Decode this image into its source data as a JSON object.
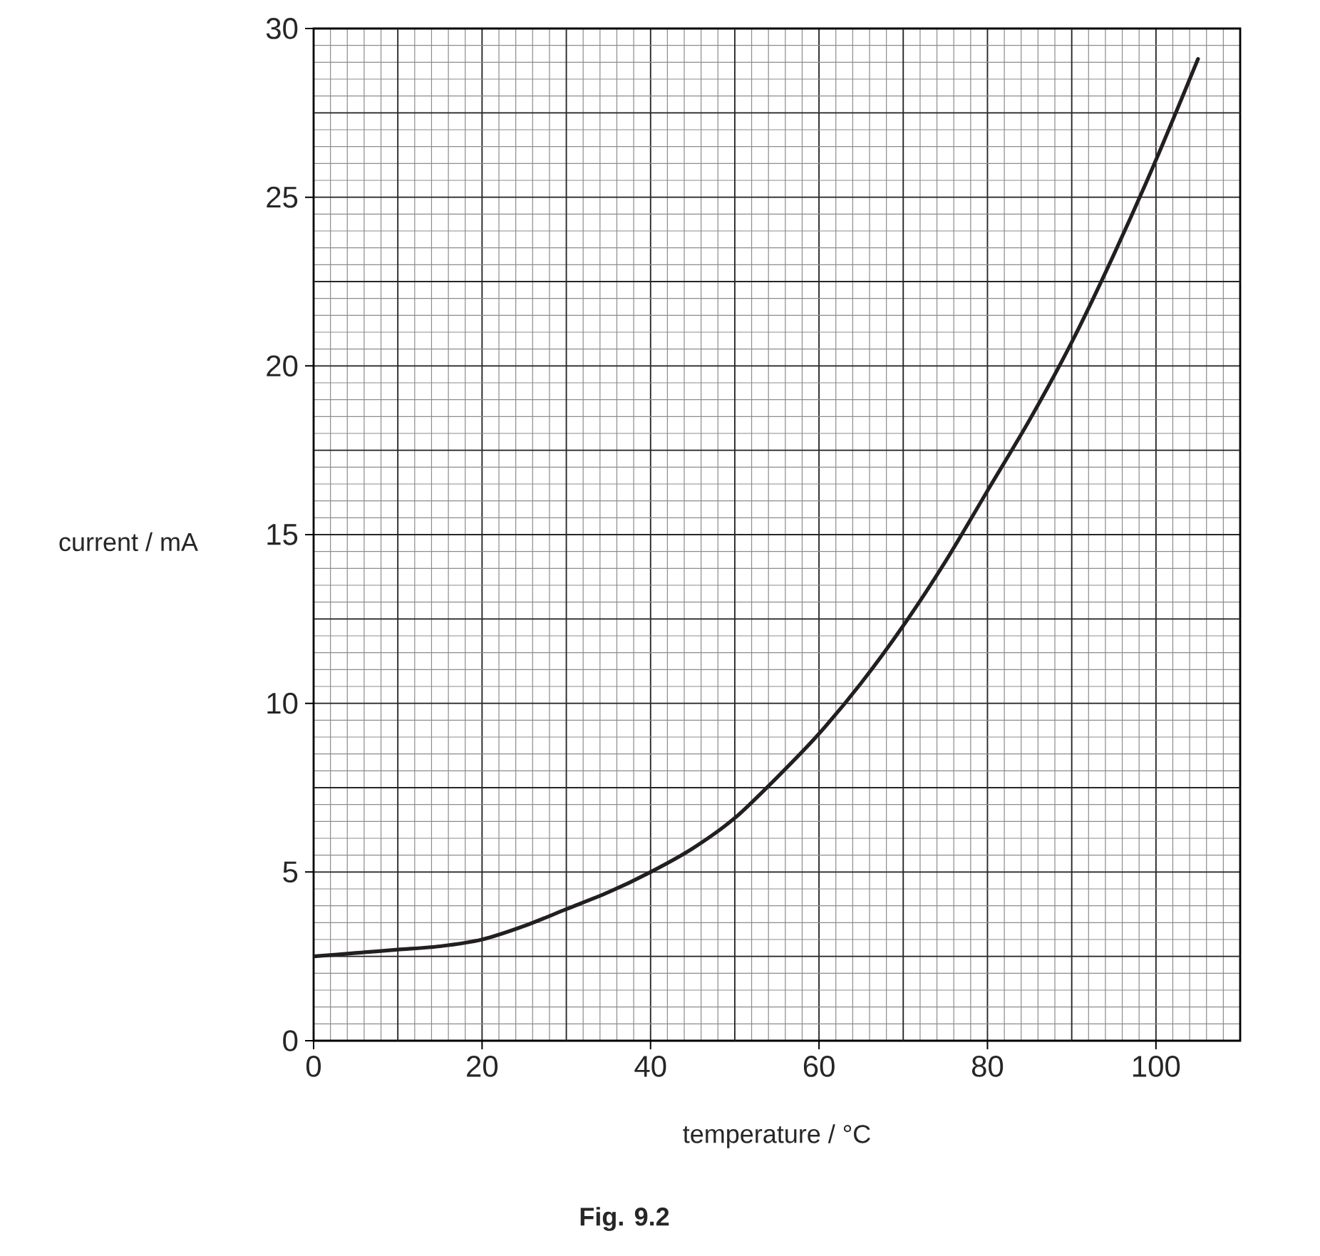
{
  "chart_data": {
    "type": "line",
    "xlabel": "temperature / °C",
    "ylabel": "current / mA",
    "annotations": [
      "Fig. 9.2"
    ],
    "x": [
      0,
      5,
      10,
      15,
      20,
      25,
      30,
      35,
      40,
      45,
      50,
      55,
      60,
      65,
      70,
      75,
      80,
      85,
      90,
      95,
      100,
      105
    ],
    "values": [
      2.5,
      2.6,
      2.7,
      2.8,
      3.0,
      3.4,
      3.9,
      4.4,
      5.0,
      5.7,
      6.6,
      7.8,
      9.1,
      10.6,
      12.3,
      14.2,
      16.3,
      18.4,
      20.7,
      23.3,
      26.1,
      29.1
    ],
    "color": "#231f20",
    "xlim": [
      0,
      110
    ],
    "ylim": [
      0,
      30
    ],
    "xticks": [
      0,
      20,
      40,
      60,
      80,
      100
    ],
    "yticks": [
      0,
      5,
      10,
      15,
      20,
      25,
      30
    ],
    "grid": true
  }
}
